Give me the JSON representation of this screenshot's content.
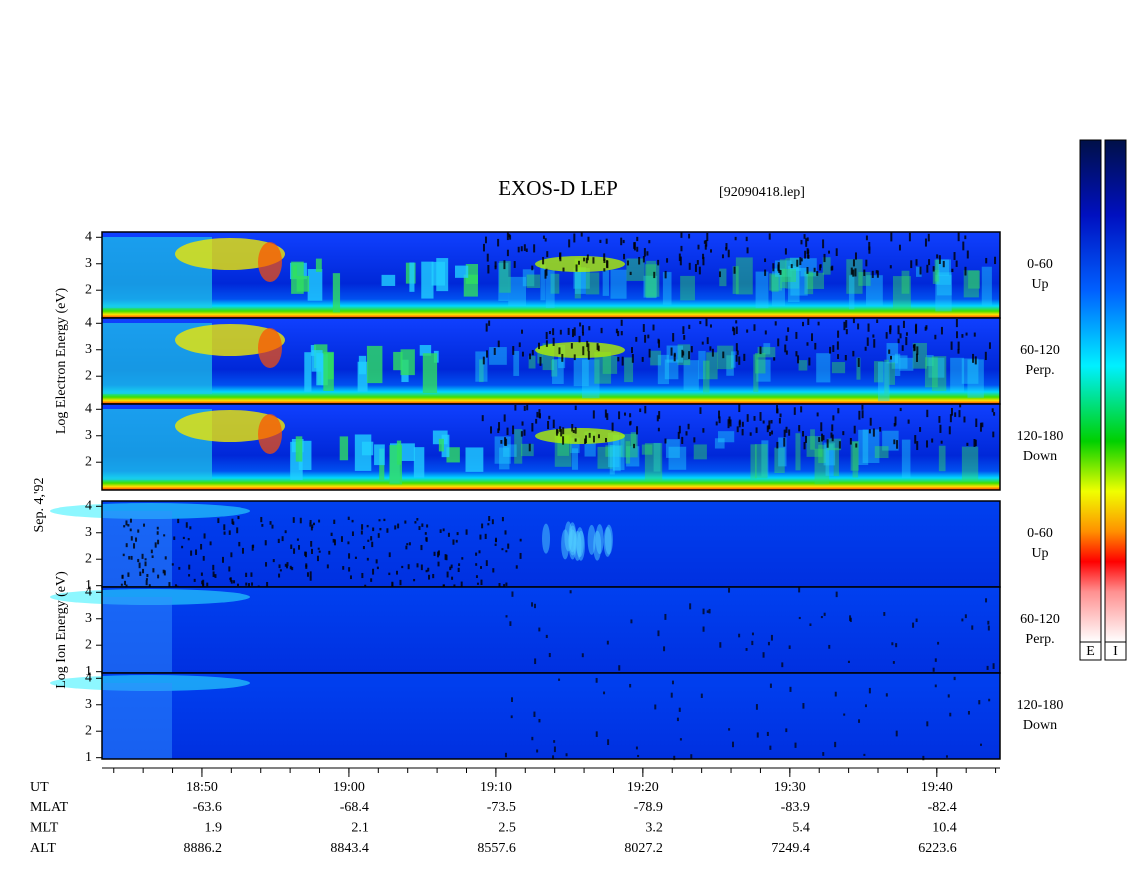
{
  "chart_data": {
    "type": "spectrogram",
    "title": "EXOS-D LEP",
    "subtitle": "[92090418.lep]",
    "date_label": "Sep. 4,'92",
    "xlim": [
      "18:43:12",
      "19:44:18"
    ],
    "xticks": [
      "18:50",
      "19:00",
      "19:10",
      "19:20",
      "19:30",
      "19:40"
    ],
    "x_row_label": "UT",
    "rows": [
      {
        "name": "MLAT",
        "values": [
          -63.6,
          -68.4,
          -73.5,
          -78.9,
          -83.9,
          -82.4
        ]
      },
      {
        "name": "MLT",
        "values": [
          1.9,
          2.1,
          2.5,
          3.2,
          5.4,
          10.4
        ]
      },
      {
        "name": "ALT",
        "values": [
          8886.2,
          8843.4,
          8557.6,
          8027.2,
          7249.4,
          6223.6
        ]
      }
    ],
    "groups": [
      {
        "ylabel": "Log  Electron  Energy (eV)",
        "species": "electron",
        "ylim": [
          0.95,
          4.2
        ],
        "yticks": [
          2,
          3,
          4
        ],
        "panels": [
          {
            "angle": "0-60",
            "direction": "Up"
          },
          {
            "angle": "60-120",
            "direction": "Perp."
          },
          {
            "angle": "120-180",
            "direction": "Down"
          }
        ]
      },
      {
        "ylabel": "Log  Ion  Energy (eV)",
        "species": "ion",
        "ylim": [
          0.95,
          4.2
        ],
        "yticks": [
          1,
          2,
          3,
          4
        ],
        "panels": [
          {
            "angle": "0-60",
            "direction": "Up"
          },
          {
            "angle": "60-120",
            "direction": "Perp."
          },
          {
            "angle": "120-180",
            "direction": "Down"
          }
        ]
      }
    ],
    "colorbar_labels": [
      "E",
      "I"
    ]
  }
}
